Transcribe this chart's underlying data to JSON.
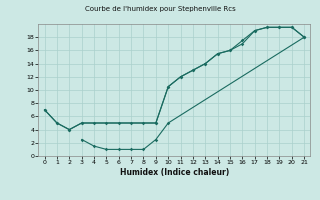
{
  "title": "Courbe de l'humidex pour Stephenville Rcs",
  "xlabel": "Humidex (Indice chaleur)",
  "bg_color": "#cce8e4",
  "grid_color": "#aad0cc",
  "line_color": "#1a6b60",
  "xlim": [
    -0.5,
    21.5
  ],
  "ylim": [
    0,
    20
  ],
  "xticks": [
    0,
    1,
    2,
    3,
    4,
    5,
    6,
    7,
    8,
    9,
    10,
    11,
    12,
    13,
    14,
    15,
    16,
    17,
    18,
    19,
    20,
    21
  ],
  "yticks": [
    0,
    2,
    4,
    6,
    8,
    10,
    12,
    14,
    16,
    18
  ],
  "line1": {
    "x": [
      0,
      1,
      2,
      3,
      9,
      10,
      11,
      12,
      13,
      14,
      15,
      16,
      17,
      18,
      19,
      20,
      21
    ],
    "y": [
      7,
      5,
      4,
      5,
      5,
      10.5,
      12,
      13,
      14,
      15.5,
      16,
      17.5,
      19,
      19.5,
      19.5,
      19.5,
      18
    ]
  },
  "line2": {
    "x": [
      0,
      1,
      2,
      3,
      4,
      5,
      6,
      7,
      8,
      9,
      10,
      11,
      12,
      13,
      14,
      15,
      16,
      17,
      18,
      19,
      20,
      21
    ],
    "y": [
      7,
      5,
      4,
      5,
      5,
      5,
      5,
      5,
      5,
      5,
      10.5,
      12,
      13,
      14,
      15.5,
      16,
      17,
      19,
      19.5,
      19.5,
      19.5,
      18
    ]
  },
  "line3": {
    "x": [
      3,
      4,
      5,
      6,
      7,
      8,
      9,
      10,
      21
    ],
    "y": [
      2.5,
      1.5,
      1,
      1,
      1,
      1,
      2.5,
      5,
      18
    ]
  }
}
